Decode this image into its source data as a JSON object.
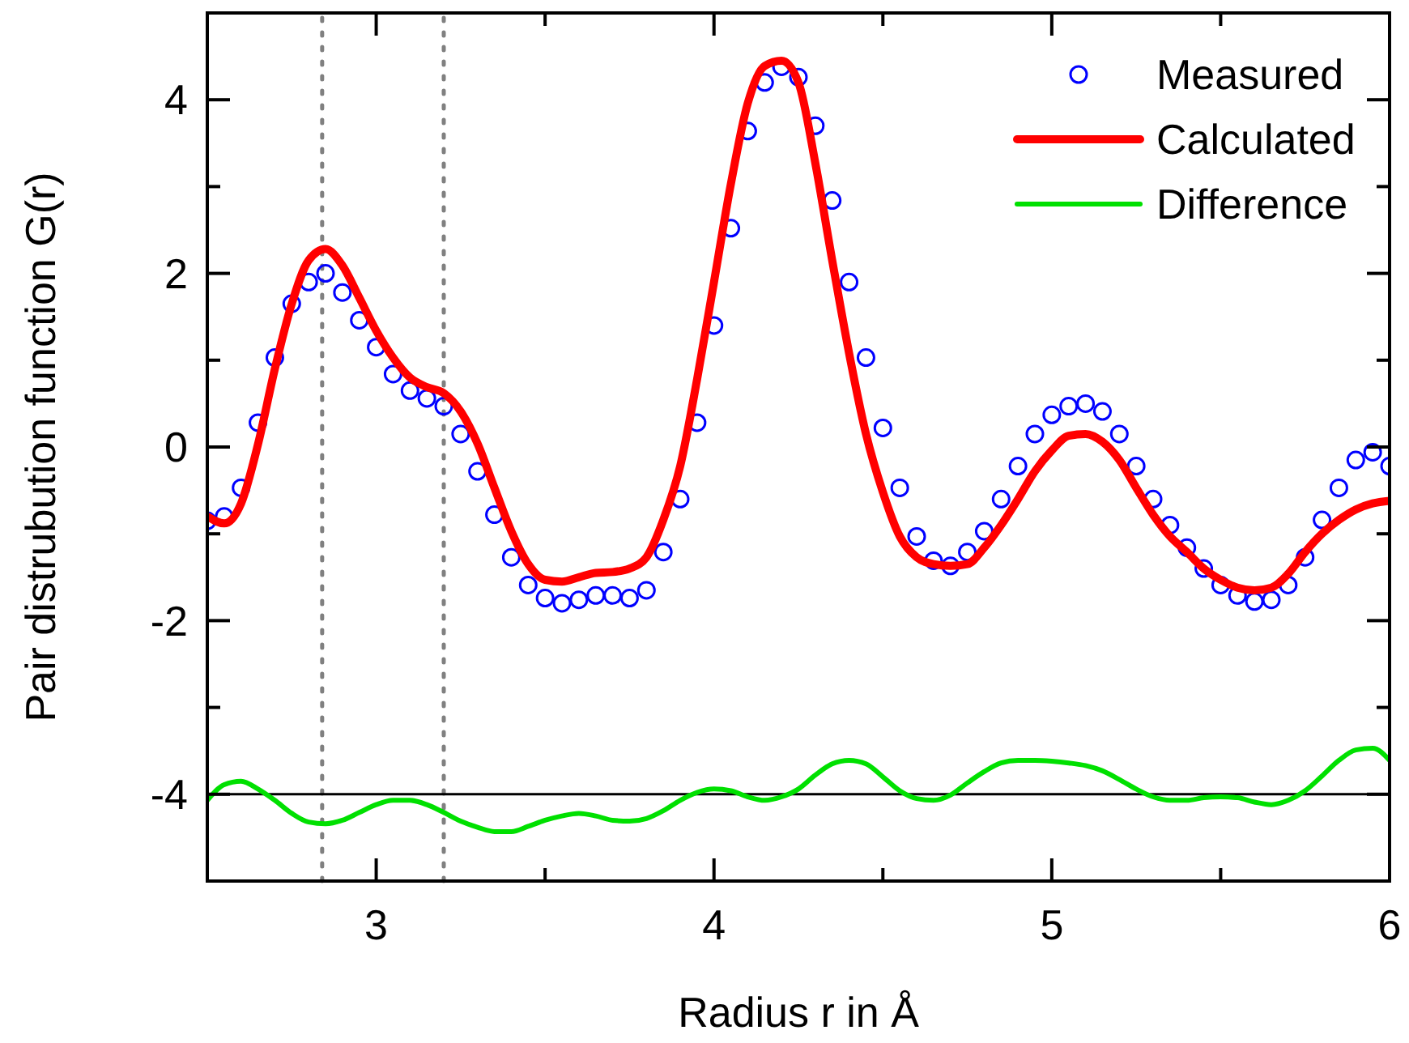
{
  "chart_data": {
    "type": "scatter",
    "xlabel": "Radius r in Å",
    "ylabel": "Pair distrubution function G(r)",
    "x": [
      2.5,
      2.55,
      2.6,
      2.65,
      2.7,
      2.75,
      2.8,
      2.85,
      2.9,
      2.95,
      3.0,
      3.05,
      3.1,
      3.15,
      3.2,
      3.25,
      3.3,
      3.35,
      3.4,
      3.45,
      3.5,
      3.55,
      3.6,
      3.65,
      3.7,
      3.75,
      3.8,
      3.85,
      3.9,
      3.95,
      4.0,
      4.05,
      4.1,
      4.15,
      4.2,
      4.25,
      4.3,
      4.35,
      4.4,
      4.45,
      4.5,
      4.55,
      4.6,
      4.65,
      4.7,
      4.75,
      4.8,
      4.85,
      4.9,
      4.95,
      5.0,
      5.05,
      5.1,
      5.15,
      5.2,
      5.25,
      5.3,
      5.35,
      5.4,
      5.45,
      5.5,
      5.55,
      5.6,
      5.65,
      5.7,
      5.75,
      5.8,
      5.85,
      5.9,
      5.95,
      6.0
    ],
    "series": [
      {
        "name": "Measured",
        "marker": "circle",
        "color": "#0000ff",
        "values": [
          -0.85,
          -0.8,
          -0.47,
          0.28,
          1.03,
          1.65,
          1.9,
          2.0,
          1.78,
          1.46,
          1.15,
          0.84,
          0.65,
          0.56,
          0.47,
          0.15,
          -0.28,
          -0.78,
          -1.27,
          -1.59,
          -1.74,
          -1.8,
          -1.76,
          -1.71,
          -1.71,
          -1.74,
          -1.65,
          -1.21,
          -0.6,
          0.28,
          1.4,
          2.52,
          3.64,
          4.2,
          4.38,
          4.26,
          3.7,
          2.84,
          1.9,
          1.03,
          0.22,
          -0.47,
          -1.03,
          -1.31,
          -1.37,
          -1.21,
          -0.97,
          -0.6,
          -0.22,
          0.15,
          0.37,
          0.47,
          0.5,
          0.41,
          0.15,
          -0.22,
          -0.6,
          -0.9,
          -1.16,
          -1.4,
          -1.59,
          -1.71,
          -1.78,
          -1.76,
          -1.59,
          -1.27,
          -0.84,
          -0.47,
          -0.15,
          -0.06,
          -0.22
        ]
      },
      {
        "name": "Calculated",
        "type": "line",
        "color": "#ff0000",
        "values": [
          -0.8,
          -0.88,
          -0.65,
          0.03,
          0.9,
          1.65,
          2.15,
          2.28,
          2.09,
          1.72,
          1.34,
          1.03,
          0.8,
          0.69,
          0.62,
          0.41,
          0.04,
          -0.47,
          -0.97,
          -1.35,
          -1.53,
          -1.55,
          -1.5,
          -1.45,
          -1.44,
          -1.4,
          -1.27,
          -0.84,
          -0.22,
          0.78,
          1.9,
          3.03,
          3.96,
          4.39,
          4.45,
          4.2,
          3.27,
          2.15,
          1.08,
          0.15,
          -0.52,
          -1.03,
          -1.27,
          -1.35,
          -1.37,
          -1.35,
          -1.16,
          -0.9,
          -0.6,
          -0.28,
          -0.04,
          0.13,
          0.15,
          0.06,
          -0.15,
          -0.47,
          -0.78,
          -1.03,
          -1.21,
          -1.4,
          -1.53,
          -1.62,
          -1.65,
          -1.62,
          -1.46,
          -1.21,
          -1.0,
          -0.84,
          -0.72,
          -0.65,
          -0.62
        ]
      },
      {
        "name": "Difference",
        "type": "line",
        "color": "#00e000",
        "values": [
          -4.07,
          -3.89,
          -3.85,
          -3.94,
          -4.07,
          -4.22,
          -4.32,
          -4.34,
          -4.3,
          -4.21,
          -4.12,
          -4.07,
          -4.07,
          -4.12,
          -4.21,
          -4.31,
          -4.38,
          -4.43,
          -4.43,
          -4.37,
          -4.3,
          -4.25,
          -4.22,
          -4.25,
          -4.3,
          -4.31,
          -4.28,
          -4.19,
          -4.07,
          -3.98,
          -3.94,
          -3.96,
          -4.03,
          -4.07,
          -4.03,
          -3.94,
          -3.78,
          -3.65,
          -3.61,
          -3.65,
          -3.8,
          -3.96,
          -4.05,
          -4.07,
          -4.01,
          -3.87,
          -3.74,
          -3.64,
          -3.61,
          -3.61,
          -3.62,
          -3.64,
          -3.67,
          -3.73,
          -3.83,
          -3.94,
          -4.03,
          -4.07,
          -4.07,
          -4.04,
          -4.03,
          -4.04,
          -4.09,
          -4.12,
          -4.07,
          -3.96,
          -3.79,
          -3.61,
          -3.49,
          -3.47,
          -3.61
        ]
      }
    ],
    "xlim": [
      2.5,
      6
    ],
    "xticks": [
      {
        "value": 2.5,
        "label": null
      },
      3,
      {
        "value": 3.5,
        "label": null
      },
      4,
      {
        "value": 4.5,
        "label": null
      },
      5,
      {
        "value": 5.5,
        "label": null
      },
      6
    ],
    "ylim": [
      -5,
      5
    ],
    "yticks": [
      {
        "value": -5,
        "label": null
      },
      -4,
      {
        "value": -3,
        "label": null
      },
      -2,
      {
        "value": -1,
        "label": null
      },
      0,
      {
        "value": 1,
        "label": null
      },
      2,
      {
        "value": 3,
        "label": null
      },
      4,
      {
        "value": 5,
        "label": null
      }
    ],
    "ref_lines": [
      {
        "axis": "x",
        "value": 2.84,
        "color": "#808080",
        "line_style": "dotted"
      },
      {
        "axis": "x",
        "value": 3.2,
        "color": "#808080",
        "line_style": "dotted"
      },
      {
        "axis": "y",
        "value": -4,
        "color": "#000000",
        "line_style": "solid"
      }
    ],
    "grid": false,
    "legend": "top right"
  }
}
